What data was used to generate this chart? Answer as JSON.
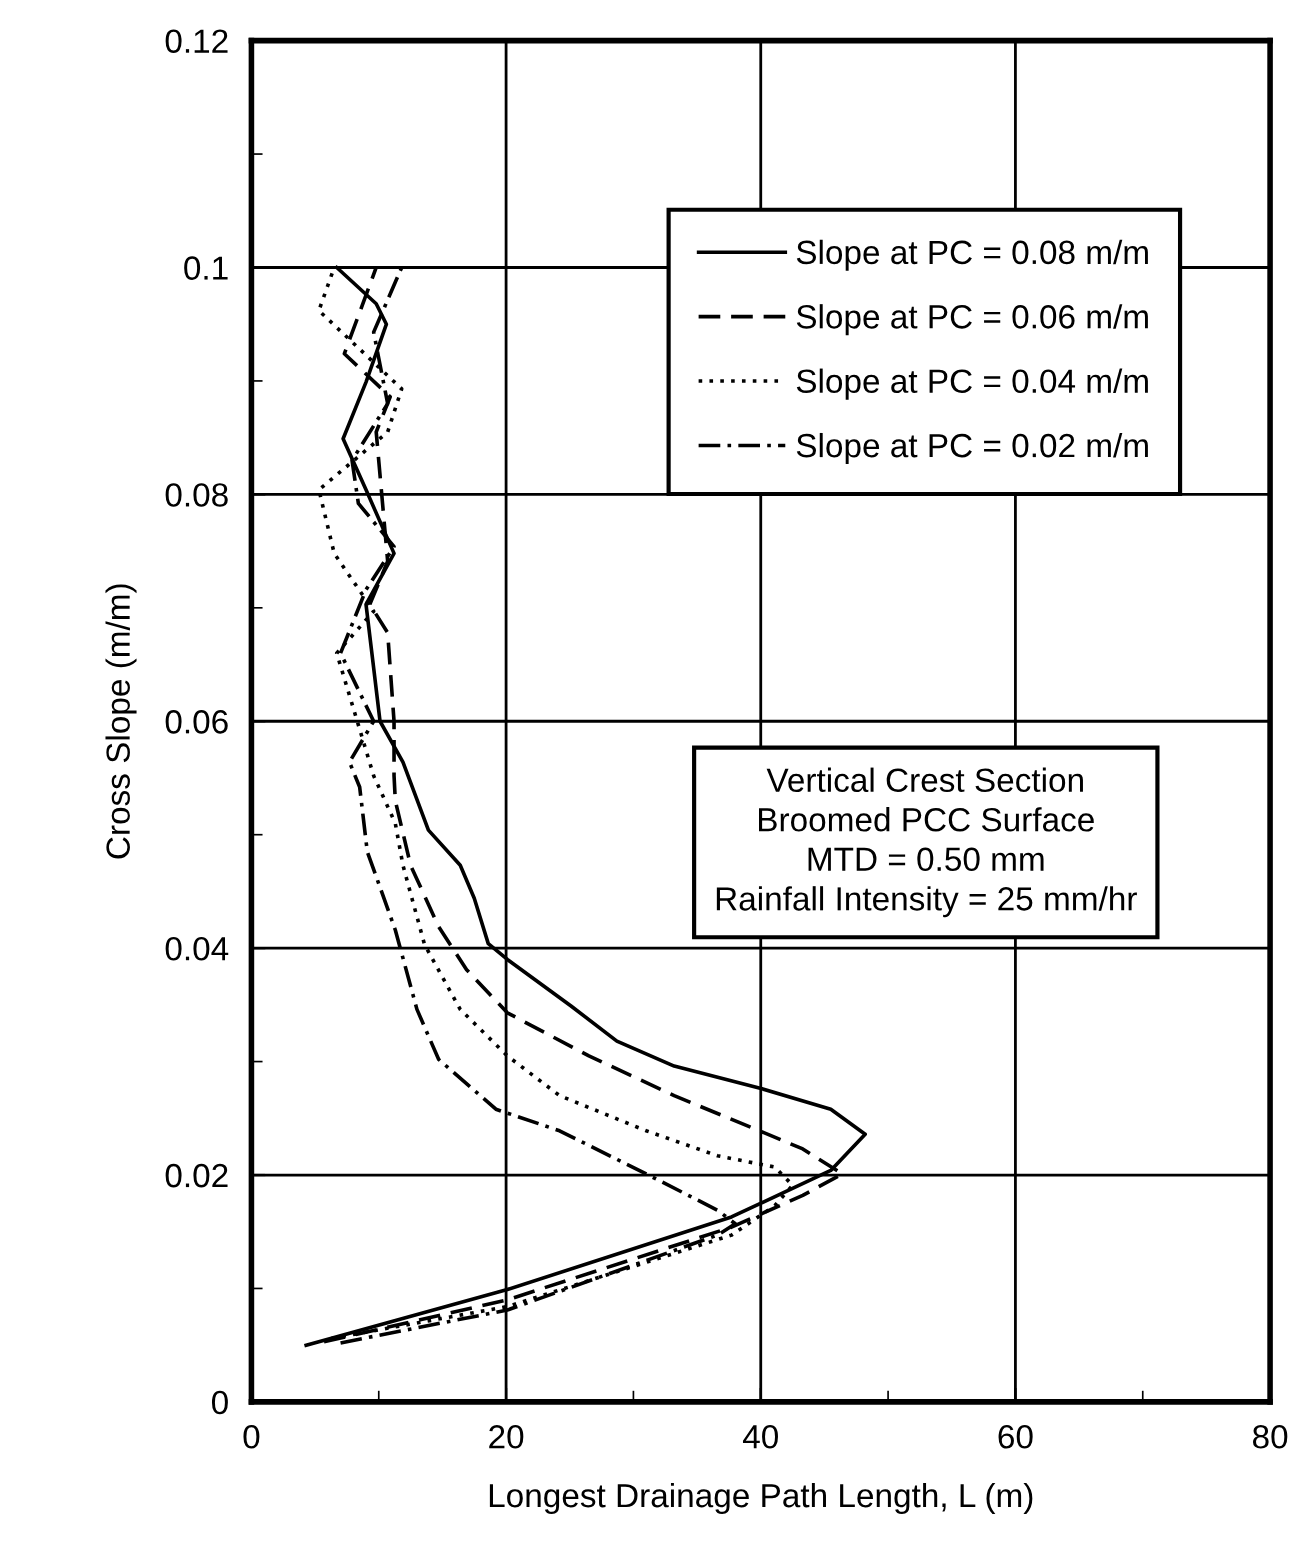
{
  "chart_data": {
    "type": "line",
    "xlabel": "Longest Drainage Path Length, L (m)",
    "ylabel": "Cross Slope (m/m)",
    "xlim": [
      0,
      80
    ],
    "xticks": [
      0,
      20,
      40,
      60,
      80
    ],
    "ylim": [
      0,
      0.12
    ],
    "yticks": [
      0,
      0.02,
      0.04,
      0.06,
      0.08,
      0.1,
      0.12
    ],
    "grid": true,
    "legend": "top right",
    "marker": "none",
    "annotations": [
      "Vertical Crest Section\nBroomed PCC Surface\nMTD = 0.50 mm\nRainfall Intensity = 25 mm/hr"
    ],
    "series": [
      {
        "name": "Slope at PC = 0.08 m/m",
        "color": "#000000",
        "line_style": "solid",
        "x": [
          4.3,
          20.1,
          37.7,
          45.5,
          48.2,
          45.5,
          40.1,
          33.2,
          28.7,
          25.1,
          20.1,
          18.6,
          17.5,
          16.4,
          13.9,
          11.9,
          10.1,
          9.6,
          9.0,
          11.2,
          9.0,
          7.2,
          9.0,
          10.6,
          9.8,
          6.7
        ],
        "values": [
          0.005,
          0.0099,
          0.0163,
          0.0204,
          0.0236,
          0.0258,
          0.0276,
          0.0296,
          0.0318,
          0.0349,
          0.039,
          0.0404,
          0.0444,
          0.0473,
          0.0504,
          0.0564,
          0.06,
          0.0647,
          0.0703,
          0.0748,
          0.0804,
          0.0849,
          0.0899,
          0.095,
          0.0968,
          0.1
        ]
      },
      {
        "name": "Slope at PC = 0.06 m/m",
        "color": "#000000",
        "line_style": "dashed",
        "x": [
          5.7,
          20.1,
          37.7,
          43.3,
          46.4,
          43.3,
          40.1,
          33.2,
          26.5,
          20.1,
          16.9,
          14.7,
          12.5,
          11.3,
          11.2,
          11.2,
          10.7,
          9.3,
          10.7,
          9.8,
          10.9,
          7.3,
          9.8
        ],
        "values": [
          0.0053,
          0.009,
          0.0154,
          0.0182,
          0.0201,
          0.0223,
          0.0238,
          0.027,
          0.0305,
          0.0343,
          0.0381,
          0.0419,
          0.0473,
          0.053,
          0.0552,
          0.06,
          0.0678,
          0.0703,
          0.0741,
          0.0855,
          0.0886,
          0.0924,
          0.1
        ]
      },
      {
        "name": "Slope at PC = 0.04 m/m",
        "color": "#000000",
        "line_style": "dotted",
        "x": [
          6.3,
          20.1,
          37.7,
          41.1,
          42.5,
          41.1,
          36.6,
          31.0,
          24.2,
          20.1,
          16.4,
          13.6,
          11.9,
          11.3,
          9.6,
          6.7,
          9.6,
          6.5,
          5.3,
          10.7,
          11.8,
          5.3,
          6.5
        ],
        "values": [
          0.0056,
          0.0084,
          0.0147,
          0.0173,
          0.0191,
          0.0207,
          0.0217,
          0.0239,
          0.027,
          0.0305,
          0.0346,
          0.0403,
          0.0473,
          0.051,
          0.0552,
          0.066,
          0.0697,
          0.0748,
          0.0804,
          0.0855,
          0.0893,
          0.0962,
          0.1
        ]
      },
      {
        "name": "Slope at PC = 0.02 m/m",
        "color": "#000000",
        "line_style": "dashdot",
        "x": [
          7.0,
          20.1,
          36.6,
          38.0,
          36.6,
          31.0,
          24.2,
          19.2,
          14.7,
          13.0,
          11.3,
          9.1,
          8.5,
          7.7,
          9.6,
          7.0,
          9.0,
          11.2,
          8.4,
          7.9,
          10.7,
          9.6,
          11.8
        ],
        "values": [
          0.0052,
          0.0081,
          0.0147,
          0.0157,
          0.0169,
          0.0201,
          0.0239,
          0.0258,
          0.0302,
          0.0346,
          0.0416,
          0.0485,
          0.0542,
          0.0564,
          0.06,
          0.066,
          0.0716,
          0.0754,
          0.0792,
          0.083,
          0.088,
          0.0943,
          0.1
        ]
      }
    ]
  }
}
